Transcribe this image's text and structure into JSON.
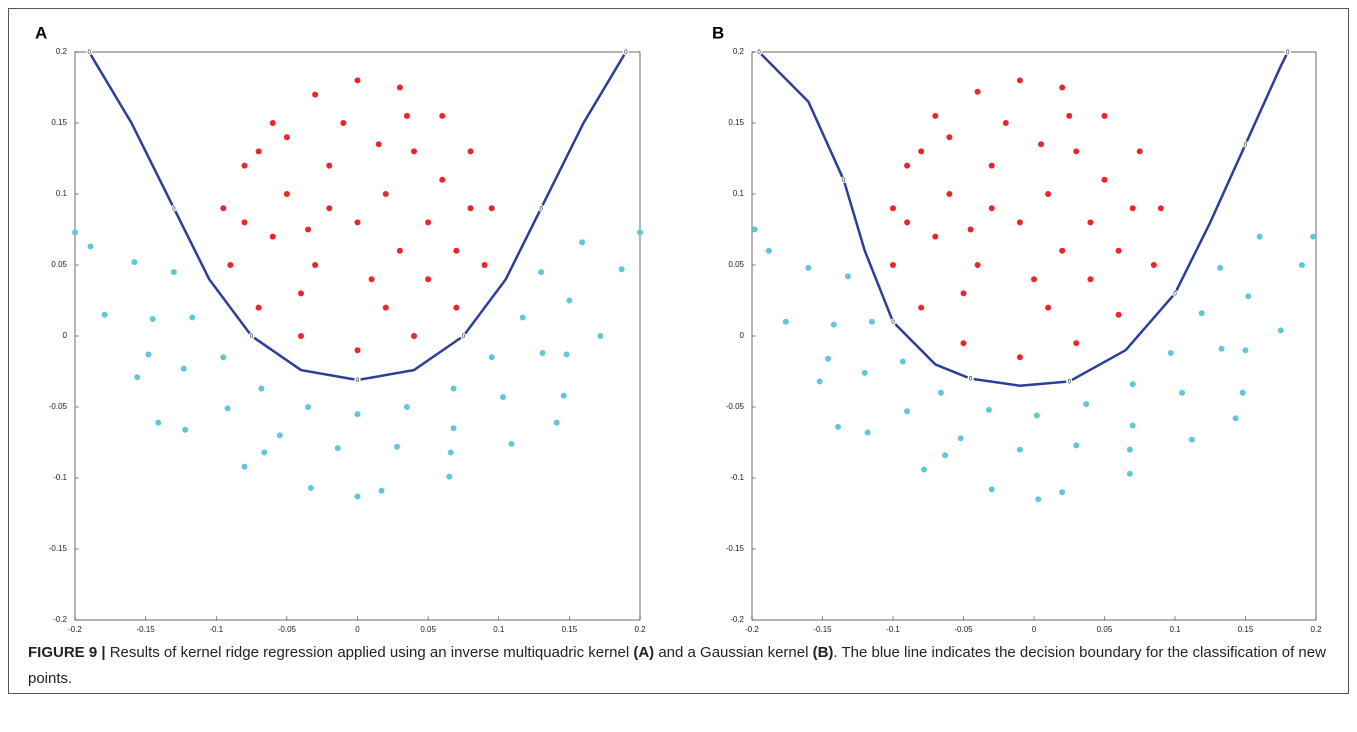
{
  "chart_data": [
    {
      "type": "scatter",
      "panel_label": "A",
      "xlim": [
        -0.2,
        0.2
      ],
      "ylim": [
        -0.2,
        0.2
      ],
      "xticks": [
        -0.2,
        -0.15,
        -0.1,
        -0.05,
        0,
        0.05,
        0.1,
        0.15,
        0.2
      ],
      "yticks": [
        -0.2,
        -0.15,
        -0.1,
        -0.05,
        0,
        0.05,
        0.1,
        0.15,
        0.2
      ],
      "series": [
        {
          "color": "#5fc8d6",
          "x": [
            -0.189,
            -0.179,
            -0.156,
            -0.122,
            -0.08,
            -0.033,
            0.017,
            0.065,
            0.109,
            0.146,
            0.172,
            0.187,
            -0.158,
            -0.145,
            -0.123,
            -0.092,
            -0.055,
            -0.014,
            0.028,
            0.068,
            0.103,
            0.131,
            0.15,
            0.159,
            -0.13,
            -0.117,
            -0.095,
            -0.068,
            -0.035,
            0,
            0.035,
            0.068,
            0.095,
            0.117,
            0.13,
            -0.2,
            -0.141,
            0,
            0.141,
            0.2,
            -0.148,
            -0.066,
            0.066,
            0.148
          ],
          "y": [
            0.063,
            0.015,
            -0.029,
            -0.066,
            -0.092,
            -0.107,
            -0.109,
            -0.099,
            -0.076,
            -0.042,
            0,
            0.047,
            0.052,
            0.012,
            -0.023,
            -0.051,
            -0.07,
            -0.079,
            -0.078,
            -0.065,
            -0.043,
            -0.012,
            0.025,
            0.066,
            0.045,
            0.013,
            -0.015,
            -0.037,
            -0.05,
            -0.055,
            -0.05,
            -0.037,
            -0.015,
            0.013,
            0.045,
            0.073,
            -0.061,
            -0.113,
            -0.061,
            0.073,
            -0.013,
            -0.082,
            -0.082,
            -0.013
          ]
        },
        {
          "color": "#e8262b",
          "x": [
            -0.08,
            -0.06,
            -0.03,
            0,
            0.03,
            0.06,
            0.08,
            0.095,
            0.09,
            0.07,
            0.04,
            0,
            -0.04,
            -0.07,
            -0.09,
            -0.095,
            -0.05,
            -0.02,
            0.02,
            0.05,
            -0.03,
            0.01,
            0.04,
            -0.06,
            0.06,
            -0.01,
            0.03,
            -0.07,
            0.07,
            -0.04,
            0.02,
            0,
            -0.02,
            0.08,
            -0.08,
            0.05,
            -0.05,
            0.015,
            -0.035,
            0.035
          ],
          "y": [
            0.12,
            0.15,
            0.17,
            0.18,
            0.175,
            0.155,
            0.13,
            0.09,
            0.05,
            0.02,
            0,
            -0.01,
            0,
            0.02,
            0.05,
            0.09,
            0.1,
            0.12,
            0.1,
            0.08,
            0.05,
            0.04,
            0.13,
            0.07,
            0.11,
            0.15,
            0.06,
            0.13,
            0.06,
            0.03,
            0.02,
            0.08,
            0.09,
            0.09,
            0.08,
            0.04,
            0.14,
            0.135,
            0.075,
            0.155
          ]
        }
      ],
      "boundary": {
        "color": "#2a3f9a",
        "label": "0",
        "x": [
          -0.19,
          -0.16,
          -0.13,
          -0.105,
          -0.075,
          -0.04,
          0,
          0.04,
          0.075,
          0.105,
          0.13,
          0.16,
          0.19
        ],
        "y": [
          0.2,
          0.15,
          0.09,
          0.04,
          0,
          -0.024,
          -0.031,
          -0.024,
          0,
          0.04,
          0.09,
          0.15,
          0.2
        ]
      }
    },
    {
      "type": "scatter",
      "panel_label": "B",
      "xlim": [
        -0.2,
        0.2
      ],
      "ylim": [
        -0.2,
        0.2
      ],
      "xticks": [
        -0.2,
        -0.15,
        -0.1,
        -0.05,
        0,
        0.05,
        0.1,
        0.15,
        0.2
      ],
      "yticks": [
        -0.2,
        -0.15,
        -0.1,
        -0.05,
        0,
        0.05,
        0.1,
        0.15,
        0.2
      ],
      "series": [
        {
          "color": "#5fc8d6",
          "x": [
            -0.188,
            -0.176,
            -0.152,
            -0.118,
            -0.078,
            -0.03,
            0.02,
            0.068,
            0.112,
            0.148,
            0.175,
            0.19,
            -0.16,
            -0.142,
            -0.12,
            -0.09,
            -0.052,
            -0.01,
            0.03,
            0.07,
            0.105,
            0.133,
            0.152,
            0.16,
            -0.132,
            -0.115,
            -0.093,
            -0.066,
            -0.032,
            0.002,
            0.037,
            0.07,
            0.097,
            0.119,
            0.132,
            -0.198,
            -0.139,
            0.003,
            0.143,
            0.198,
            -0.146,
            -0.063,
            0.068,
            0.15
          ],
          "y": [
            0.06,
            0.01,
            -0.032,
            -0.068,
            -0.094,
            -0.108,
            -0.11,
            -0.097,
            -0.073,
            -0.04,
            0.004,
            0.05,
            0.048,
            0.008,
            -0.026,
            -0.053,
            -0.072,
            -0.08,
            -0.077,
            -0.063,
            -0.04,
            -0.009,
            0.028,
            0.07,
            0.042,
            0.01,
            -0.018,
            -0.04,
            -0.052,
            -0.056,
            -0.048,
            -0.034,
            -0.012,
            0.016,
            0.048,
            0.075,
            -0.064,
            -0.115,
            -0.058,
            0.07,
            -0.016,
            -0.084,
            -0.08,
            -0.01
          ]
        },
        {
          "color": "#e8262b",
          "x": [
            -0.09,
            -0.07,
            -0.04,
            -0.01,
            0.02,
            0.05,
            0.075,
            0.09,
            0.085,
            0.06,
            0.03,
            -0.01,
            -0.05,
            -0.08,
            -0.1,
            -0.1,
            -0.06,
            -0.03,
            0.01,
            0.04,
            -0.04,
            0,
            0.03,
            -0.07,
            0.05,
            -0.02,
            0.02,
            -0.08,
            0.06,
            -0.05,
            0.01,
            -0.01,
            -0.03,
            0.07,
            -0.09,
            0.04,
            -0.06,
            0.005,
            -0.045,
            0.025
          ],
          "y": [
            0.12,
            0.155,
            0.172,
            0.18,
            0.175,
            0.155,
            0.13,
            0.09,
            0.05,
            0.015,
            -0.005,
            -0.015,
            -0.005,
            0.02,
            0.05,
            0.09,
            0.1,
            0.12,
            0.1,
            0.08,
            0.05,
            0.04,
            0.13,
            0.07,
            0.11,
            0.15,
            0.06,
            0.13,
            0.06,
            0.03,
            0.02,
            0.08,
            0.09,
            0.09,
            0.08,
            0.04,
            0.14,
            0.135,
            0.075,
            0.155
          ]
        }
      ],
      "boundary": {
        "color": "#2a3f9a",
        "label": "0",
        "x": [
          -0.195,
          -0.16,
          -0.135,
          -0.12,
          -0.1,
          -0.07,
          -0.045,
          -0.01,
          0.025,
          0.065,
          0.1,
          0.125,
          0.15,
          0.175,
          0.18
        ],
        "y": [
          0.2,
          0.165,
          0.11,
          0.06,
          0.01,
          -0.02,
          -0.03,
          -0.035,
          -0.032,
          -0.01,
          0.03,
          0.08,
          0.135,
          0.19,
          0.2
        ]
      }
    }
  ],
  "caption": {
    "label": "FIGURE 9 |",
    "text1": " Results of kernel ridge regression applied using an inverse multiquadric kernel ",
    "ref1": "(A)",
    "text2": " and a Gaussian kernel ",
    "ref2": "(B)",
    "text3": ". The blue line indicates the decision boundary for the classification of new points."
  }
}
